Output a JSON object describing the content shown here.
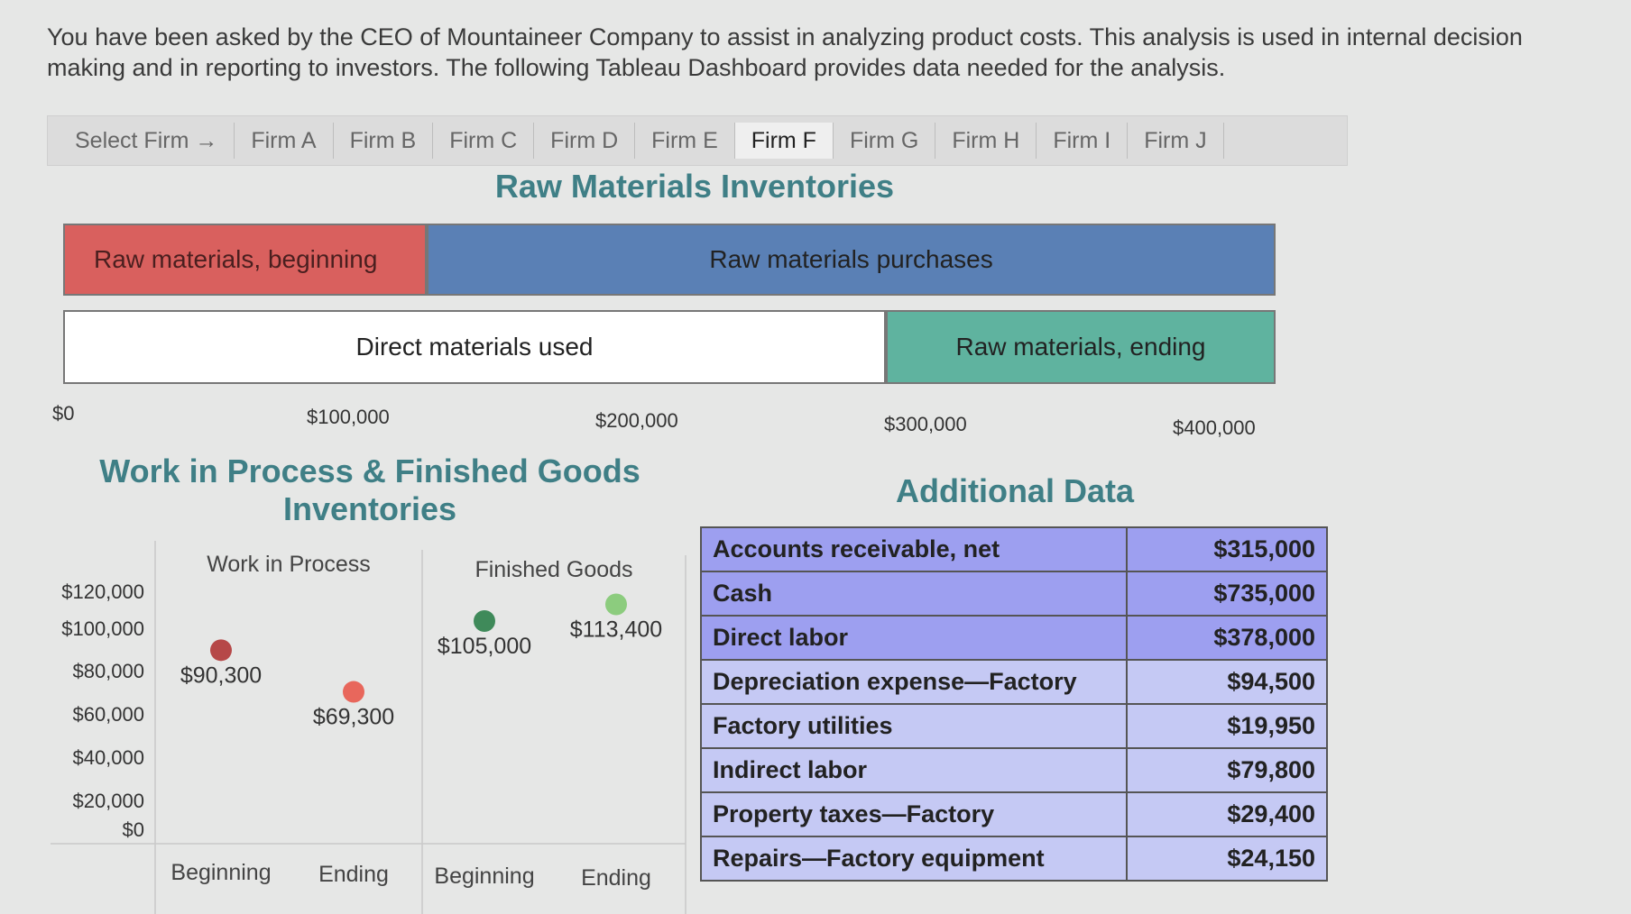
{
  "intro_text": "You have been asked by the CEO of Mountaineer Company to assist in analyzing product costs. This analysis is used in internal decision making and in reporting to investors. The following Tableau Dashboard provides data needed for the analysis.",
  "tabs": {
    "select_label": "Select Firm →",
    "items": [
      "Firm A",
      "Firm B",
      "Firm C",
      "Firm D",
      "Firm E",
      "Firm F",
      "Firm G",
      "Firm H",
      "Firm I",
      "Firm J"
    ],
    "active": "Firm F"
  },
  "colors": {
    "raw_beginning": "#d9605e",
    "purchases": "#5a80b5",
    "direct_used": "#ffffff",
    "raw_ending": "#5fb39f",
    "wip_beginning": "#b64848",
    "wip_ending": "#e8675c",
    "fg_beginning": "#3f8a5a",
    "fg_ending": "#8ccc7e",
    "section_title": "#3f7f86",
    "table_highlight": "#9d9ff0",
    "table_plain": "#c5c9f4"
  },
  "raw_materials": {
    "title": "Raw Materials Inventories",
    "beginning_label": "Raw materials, beginning",
    "purchases_label": "Raw materials purchases",
    "direct_used_label": "Direct materials used",
    "ending_label": "Raw materials, ending",
    "ticks": [
      "$0",
      "$100,000",
      "$200,000",
      "$300,000",
      "$400,000"
    ]
  },
  "wip_fg": {
    "title_line1": "Work in Process & Finished Goods",
    "title_line2": "Inventories",
    "panels": [
      "Work in Process",
      "Finished Goods"
    ],
    "x_labels": [
      "Beginning",
      "Ending",
      "Beginning",
      "Ending"
    ],
    "y_ticks": [
      "$120,000",
      "$100,000",
      "$80,000",
      "$60,000",
      "$40,000",
      "$20,000",
      "$0"
    ]
  },
  "additional": {
    "title": "Additional Data",
    "rows": [
      {
        "label": "Accounts receivable, net",
        "value": "$315,000",
        "highlight": true
      },
      {
        "label": "Cash",
        "value": "$735,000",
        "highlight": true
      },
      {
        "label": "Direct labor",
        "value": "$378,000",
        "highlight": true
      },
      {
        "label": "Depreciation expense—Factory",
        "value": "$94,500",
        "highlight": false
      },
      {
        "label": "Factory utilities",
        "value": "$19,950",
        "highlight": false
      },
      {
        "label": "Indirect labor",
        "value": "$79,800",
        "highlight": false
      },
      {
        "label": "Property taxes—Factory",
        "value": "$29,400",
        "highlight": false
      },
      {
        "label": "Repairs—Factory equipment",
        "value": "$24,150",
        "highlight": false
      }
    ]
  },
  "chart_data": [
    {
      "type": "bar",
      "orientation": "horizontal-stacked",
      "title": "Raw Materials Inventories",
      "xlim": [
        0,
        420000
      ],
      "ticks": [
        0,
        100000,
        200000,
        300000,
        400000
      ],
      "rows": [
        {
          "segments": [
            {
              "name": "Raw materials, beginning",
              "start": 0,
              "end": 126000
            },
            {
              "name": "Raw materials purchases",
              "start": 126000,
              "end": 420000
            }
          ]
        },
        {
          "segments": [
            {
              "name": "Direct materials used",
              "start": 0,
              "end": 285000
            },
            {
              "name": "Raw materials, ending",
              "start": 285000,
              "end": 420000
            }
          ]
        }
      ]
    },
    {
      "type": "scatter",
      "title": "Work in Process & Finished Goods Inventories",
      "ylim": [
        0,
        120000
      ],
      "points": [
        {
          "panel": "Work in Process",
          "x": "Beginning",
          "y": 90300,
          "label": "$90,300"
        },
        {
          "panel": "Work in Process",
          "x": "Ending",
          "y": 69300,
          "label": "$69,300"
        },
        {
          "panel": "Finished Goods",
          "x": "Beginning",
          "y": 105000,
          "label": "$105,000"
        },
        {
          "panel": "Finished Goods",
          "x": "Ending",
          "y": 113400,
          "label": "$113,400"
        }
      ]
    }
  ]
}
